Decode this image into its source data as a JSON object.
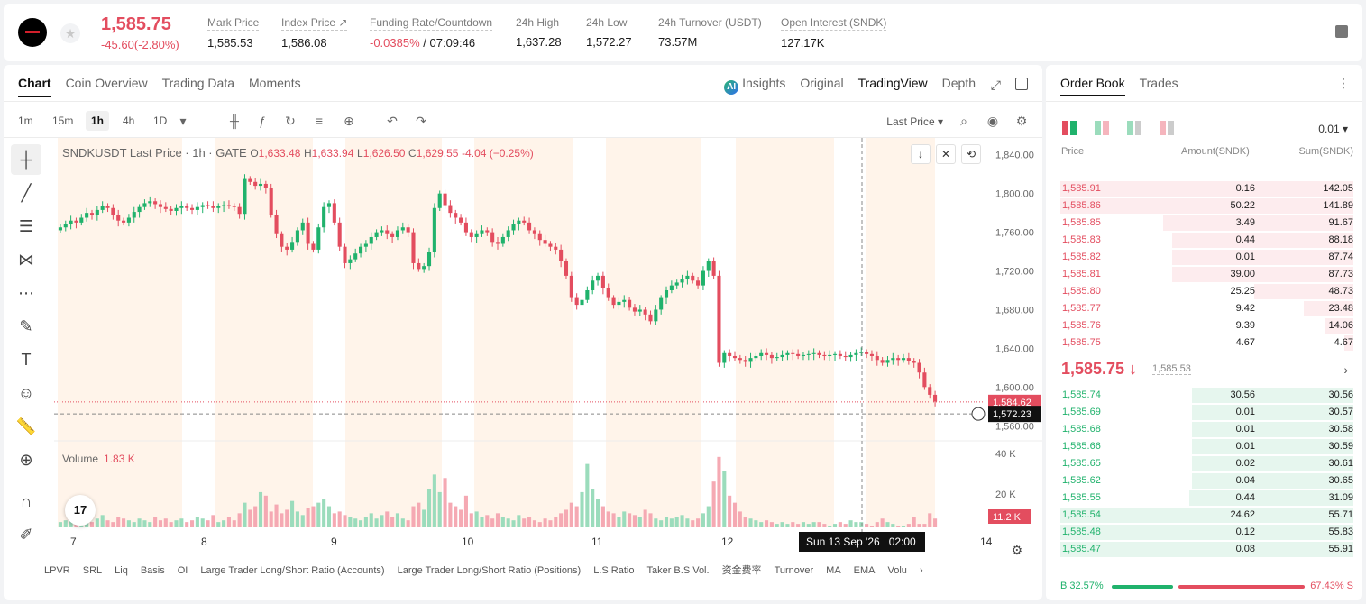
{
  "ticker": {
    "price": "1,585.75",
    "change": "-45.60(-2.80%)",
    "stats": [
      {
        "label": "Mark Price",
        "value": "1,585.53"
      },
      {
        "label": "Index Price ↗",
        "value": "1,586.08"
      },
      {
        "label": "Funding Rate/Countdown",
        "value_neg": "-0.0385%",
        "value": " / 07:09:46"
      },
      {
        "label": "24h High",
        "value": "1,637.28"
      },
      {
        "label": "24h Low",
        "value": "1,572.27"
      },
      {
        "label": "24h Turnover (USDT)",
        "value": "73.57M"
      },
      {
        "label": "Open Interest (SNDK)",
        "value": "127.17K"
      }
    ]
  },
  "chart_tabs": [
    "Chart",
    "Coin Overview",
    "Trading Data",
    "Moments"
  ],
  "view_tabs": {
    "insights": "Insights",
    "ai": "AI",
    "original": "Original",
    "tradingview": "TradingView",
    "depth": "Depth"
  },
  "timeframes": [
    "1m",
    "15m",
    "1h",
    "4h",
    "1D"
  ],
  "last_price_label": "Last Price",
  "legend": {
    "symbol": "SNDKUSDT Last Price · 1h · GATE",
    "o_label": "O",
    "o": "1,633.48",
    "h_label": "H",
    "h": "1,633.94",
    "l_label": "L",
    "l": "1,626.50",
    "c_label": "C",
    "c": "1,629.55",
    "chg": "-4.04 (−0.25%)"
  },
  "volume_legend": {
    "label": "Volume",
    "value": "1.83 K"
  },
  "tv_logo": "17",
  "indicators": [
    "LPVR",
    "SRL",
    "Liq",
    "Basis",
    "OI",
    "Large Trader Long/Short Ratio (Accounts)",
    "Large Trader Long/Short Ratio (Positions)",
    "L.S Ratio",
    "Taker B.S Vol.",
    "资金费率",
    "Turnover",
    "MA",
    "EMA",
    "Volu"
  ],
  "chart_data": {
    "type": "candlestick",
    "price_axis": {
      "ticks": [
        "1,840.00",
        "1,800.00",
        "1,760.00",
        "1,720.00",
        "1,680.00",
        "1,640.00",
        "1,600.00",
        "1,560.00"
      ],
      "min": 1550,
      "max": 1850
    },
    "volume_axis": {
      "ticks": [
        "40 K",
        "20 K"
      ]
    },
    "x_ticks": [
      "7",
      "8",
      "9",
      "10",
      "11",
      "12",
      "14"
    ],
    "last_price_tag": "1,584.62",
    "crosshair_price_tag": "1,572.23",
    "crosshair_time_tag": "Sun 13 Sep '26   02:00",
    "volume_tag": "11.2 K",
    "close_series": [
      1765,
      1768,
      1772,
      1770,
      1775,
      1780,
      1778,
      1783,
      1787,
      1785,
      1778,
      1772,
      1770,
      1775,
      1781,
      1786,
      1790,
      1792,
      1789,
      1786,
      1784,
      1782,
      1785,
      1787,
      1785,
      1783,
      1786,
      1788,
      1787,
      1785,
      1787,
      1788,
      1787,
      1786,
      1779,
      1815,
      1812,
      1808,
      1810,
      1806,
      1778,
      1758,
      1745,
      1742,
      1750,
      1762,
      1770,
      1748,
      1742,
      1765,
      1786,
      1790,
      1770,
      1745,
      1728,
      1732,
      1738,
      1745,
      1748,
      1755,
      1760,
      1762,
      1758,
      1755,
      1762,
      1765,
      1760,
      1728,
      1722,
      1725,
      1740,
      1785,
      1800,
      1788,
      1780,
      1775,
      1770,
      1760,
      1755,
      1758,
      1762,
      1760,
      1750,
      1748,
      1755,
      1762,
      1768,
      1772,
      1770,
      1762,
      1758,
      1752,
      1748,
      1745,
      1742,
      1730,
      1715,
      1692,
      1685,
      1690,
      1700,
      1710,
      1715,
      1702,
      1692,
      1685,
      1688,
      1690,
      1682,
      1678,
      1680,
      1675,
      1668,
      1680,
      1692,
      1700,
      1705,
      1708,
      1712,
      1715,
      1710,
      1705,
      1720,
      1730,
      1715,
      1625,
      1635,
      1632,
      1630,
      1628,
      1626,
      1630,
      1632,
      1635,
      1633,
      1630,
      1631,
      1633,
      1635,
      1634,
      1632,
      1633,
      1634,
      1635,
      1633,
      1632,
      1633,
      1634,
      1632,
      1631,
      1633,
      1635,
      1636,
      1634,
      1632,
      1628,
      1625,
      1628,
      1630,
      1628,
      1630,
      1627,
      1625,
      1615,
      1600,
      1592,
      1585
    ],
    "volume_series": [
      3,
      4,
      5,
      3,
      6,
      4,
      3,
      5,
      7,
      4,
      3,
      6,
      5,
      4,
      3,
      5,
      4,
      3,
      6,
      4,
      5,
      3,
      4,
      5,
      3,
      4,
      6,
      5,
      4,
      7,
      3,
      4,
      6,
      4,
      8,
      14,
      10,
      12,
      20,
      18,
      9,
      13,
      8,
      10,
      15,
      9,
      7,
      11,
      12,
      14,
      16,
      12,
      8,
      9,
      7,
      6,
      5,
      4,
      6,
      8,
      5,
      7,
      9,
      6,
      8,
      5,
      4,
      12,
      14,
      10,
      22,
      30,
      20,
      28,
      14,
      12,
      10,
      18,
      8,
      9,
      6,
      7,
      5,
      8,
      6,
      5,
      4,
      7,
      5,
      6,
      4,
      3,
      5,
      4,
      6,
      8,
      10,
      14,
      12,
      20,
      36,
      22,
      16,
      12,
      9,
      8,
      6,
      9,
      8,
      7,
      6,
      10,
      8,
      5,
      4,
      6,
      5,
      6,
      7,
      5,
      4,
      5,
      8,
      12,
      26,
      40,
      32,
      18,
      14,
      9,
      6,
      5,
      4,
      3,
      4,
      3,
      2,
      3,
      2,
      3,
      2,
      3,
      2,
      3,
      3,
      2,
      1,
      2,
      3,
      2,
      4,
      3,
      3,
      2,
      1,
      3,
      5,
      3,
      2,
      1,
      1,
      2,
      6,
      2,
      2,
      8,
      5,
      11
    ]
  },
  "order_book": {
    "tabs": [
      "Order Book",
      "Trades"
    ],
    "precision": "0.01",
    "headers": {
      "price": "Price",
      "amount": "Amount(SNDK)",
      "sum": "Sum(SNDK)"
    },
    "asks": [
      {
        "p": "1,585.91",
        "a": "0.16",
        "s": "142.05",
        "f": 1.0
      },
      {
        "p": "1,585.86",
        "a": "50.22",
        "s": "141.89",
        "f": 0.999
      },
      {
        "p": "1,585.85",
        "a": "3.49",
        "s": "91.67",
        "f": 0.645
      },
      {
        "p": "1,585.83",
        "a": "0.44",
        "s": "88.18",
        "f": 0.621
      },
      {
        "p": "1,585.82",
        "a": "0.01",
        "s": "87.74",
        "f": 0.618
      },
      {
        "p": "1,585.81",
        "a": "39.00",
        "s": "87.73",
        "f": 0.618
      },
      {
        "p": "1,585.80",
        "a": "25.25",
        "s": "48.73",
        "f": 0.343
      },
      {
        "p": "1,585.77",
        "a": "9.42",
        "s": "23.48",
        "f": 0.165
      },
      {
        "p": "1,585.76",
        "a": "9.39",
        "s": "14.06",
        "f": 0.099
      },
      {
        "p": "1,585.75",
        "a": "4.67",
        "s": "4.67",
        "f": 0.033
      }
    ],
    "mid": {
      "price": "1,585.75 ↓",
      "index": "1,585.53"
    },
    "bids": [
      {
        "p": "1,585.74",
        "a": "30.56",
        "s": "30.56",
        "f": 0.547
      },
      {
        "p": "1,585.69",
        "a": "0.01",
        "s": "30.57",
        "f": 0.547
      },
      {
        "p": "1,585.68",
        "a": "0.01",
        "s": "30.58",
        "f": 0.547
      },
      {
        "p": "1,585.66",
        "a": "0.01",
        "s": "30.59",
        "f": 0.547
      },
      {
        "p": "1,585.65",
        "a": "0.02",
        "s": "30.61",
        "f": 0.548
      },
      {
        "p": "1,585.62",
        "a": "0.04",
        "s": "30.65",
        "f": 0.548
      },
      {
        "p": "1,585.55",
        "a": "0.44",
        "s": "31.09",
        "f": 0.556
      },
      {
        "p": "1,585.54",
        "a": "24.62",
        "s": "55.71",
        "f": 0.996
      },
      {
        "p": "1,585.48",
        "a": "0.12",
        "s": "55.83",
        "f": 0.998
      },
      {
        "p": "1,585.47",
        "a": "0.08",
        "s": "55.91",
        "f": 1.0
      }
    ],
    "ratio": {
      "buy": "B 32.57%",
      "sell": "67.43% S"
    }
  },
  "colors": {
    "up": "#20b26c",
    "down": "#e34d5f",
    "session": "#fff4ea"
  }
}
